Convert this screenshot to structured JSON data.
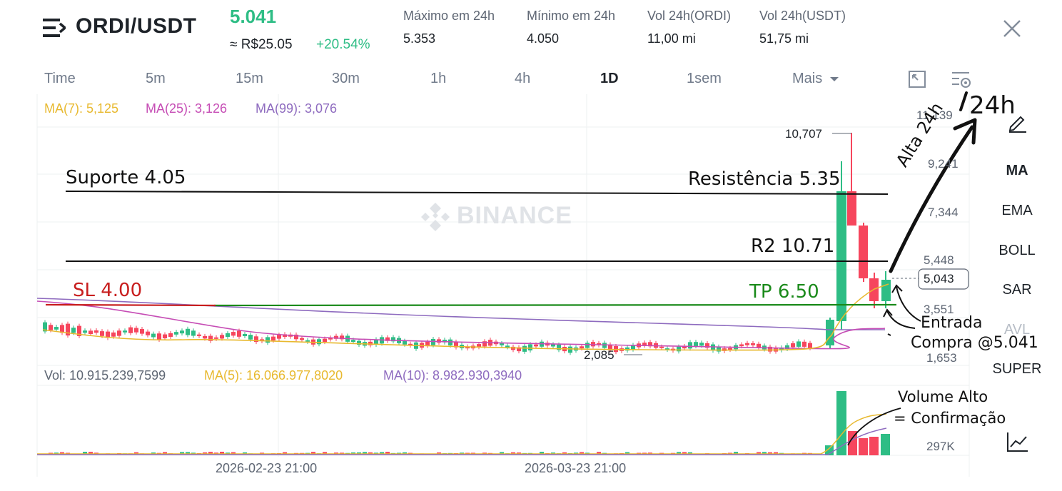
{
  "header": {
    "pair": "ORDI/USDT",
    "price": "5.041",
    "fiat_price": "≈ R$25.05",
    "change": "+20.54%",
    "stats": [
      {
        "label": "Máximo em 24h",
        "value": "5.353"
      },
      {
        "label": "Mínimo em 24h",
        "value": "4.050"
      },
      {
        "label": "Vol 24h(ORDI)",
        "value": "11,00 mi"
      },
      {
        "label": "Vol 24h(USDT)",
        "value": "51,75 mi"
      }
    ]
  },
  "timeframes": [
    "Time",
    "5m",
    "15m",
    "30m",
    "1h",
    "4h",
    "1D",
    "1sem",
    "Mais"
  ],
  "active_timeframe": "1D",
  "ma_legend": {
    "ma7": "MA(7): 5,125",
    "ma25": "MA(25): 3,126",
    "ma99": "MA(99): 3,076"
  },
  "price_axis": [
    "11,139",
    "9,241",
    "7,344",
    "5,448",
    "3,551",
    "1,653"
  ],
  "current_price_tag": "5,043",
  "high_marker": "10,707",
  "low_marker": "2,085",
  "watermark": "BINANCE",
  "indicators": [
    "MA",
    "EMA",
    "BOLL",
    "SAR",
    "AVL",
    "SUPER"
  ],
  "volume_legend": {
    "vol": "Vol: 10.915.239,7599",
    "ma5": "MA(5): 16.066.977,8020",
    "ma10": "MA(10): 8.982.930,3940"
  },
  "volume_axis": [
    "297K"
  ],
  "dates": [
    "2026-02-23 21:00",
    "2026-03-23 21:00"
  ],
  "annotations": {
    "suporte": "Suporte 4.05",
    "resistencia": "Resistência 5.35",
    "r2": "R2 10.71",
    "sl": "SL 4.00",
    "tp": "TP 6.50",
    "entrada1": "Entrada",
    "entrada2": "Compra @5.041",
    "alta": "Alta 24h",
    "h24": "24h",
    "vol1": "Volume Alto",
    "vol2": "= Confirmação"
  },
  "colors": {
    "up": "#2ebd85",
    "down": "#f6465d",
    "ma7": "#e8b92f",
    "ma25": "#c64db5",
    "ma99": "#8e6bbf"
  }
}
